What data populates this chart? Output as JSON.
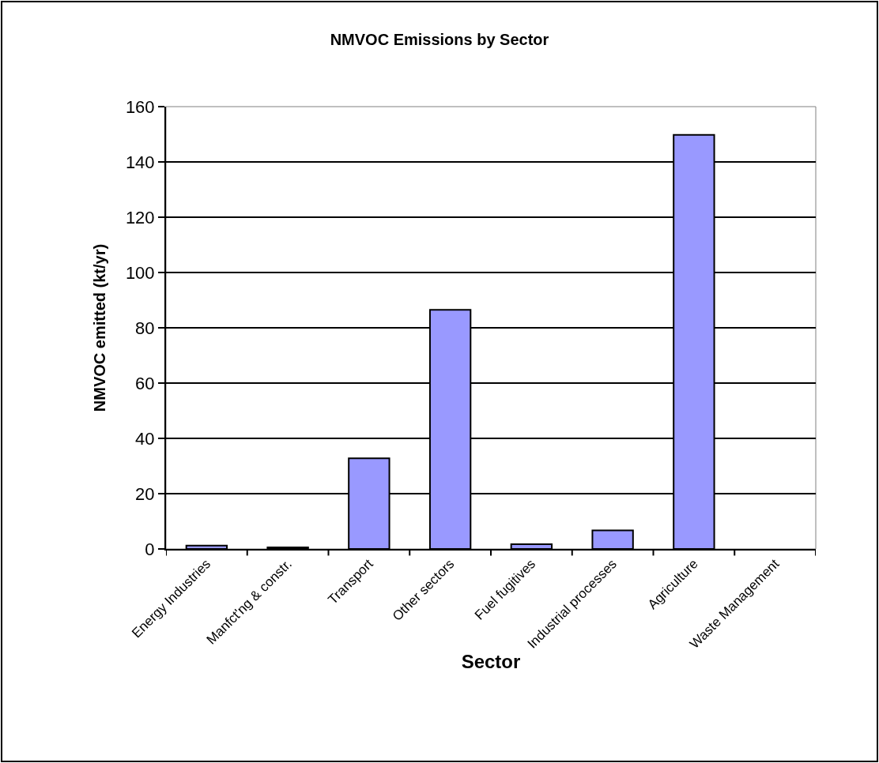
{
  "chart_data": {
    "type": "bar",
    "title": "NMVOC Emissions by Sector",
    "xlabel": "Sector",
    "ylabel": "NMVOC emitted (kt/yr)",
    "categories": [
      "Energy Industries",
      "Manfct'ng & constr.",
      "Transport",
      "Other sectors",
      "Fuel fugitives",
      "Industrial processes",
      "Agriculture",
      "Waste Management"
    ],
    "values": [
      1.2,
      0.6,
      32.8,
      86.5,
      1.7,
      6.7,
      149.8,
      null
    ],
    "color": "#9999ff",
    "ylim": [
      0,
      160
    ],
    "yticks": [
      0,
      20,
      40,
      60,
      80,
      100,
      120,
      140,
      160
    ],
    "grid": "y"
  }
}
